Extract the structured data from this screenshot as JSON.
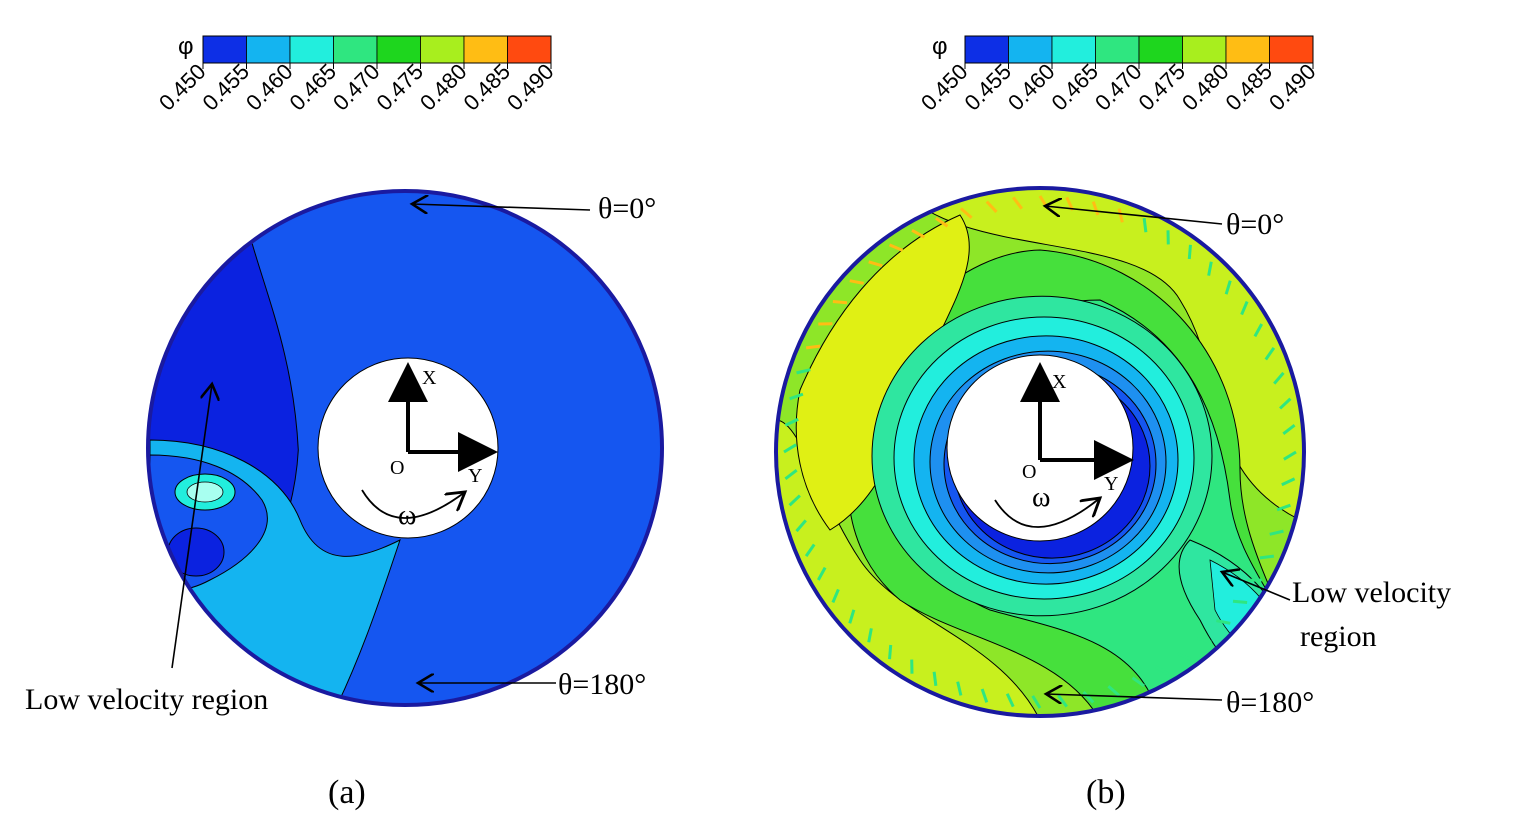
{
  "chart_data": [
    {
      "type": "heatmap",
      "panel_label": "(a)",
      "colorbar": {
        "symbol": "φ",
        "ticks": [
          "0.450",
          "0.455",
          "0.460",
          "0.465",
          "0.470",
          "0.475",
          "0.480",
          "0.485",
          "0.490"
        ],
        "colors": [
          "#0d2fe6",
          "#14b4f0",
          "#22eedd",
          "#2fe680",
          "#1ed61e",
          "#a8ee1e",
          "#ffbd14",
          "#ff4a10"
        ]
      },
      "annotations": {
        "theta_top": "θ=0°",
        "theta_bottom": "θ=180°",
        "low_velocity": "Low velocity region",
        "axis_x": "X",
        "axis_y": "Y",
        "origin": "O",
        "rotation": "ω"
      }
    },
    {
      "type": "heatmap",
      "panel_label": "(b)",
      "colorbar": {
        "symbol": "φ",
        "ticks": [
          "0.450",
          "0.455",
          "0.460",
          "0.465",
          "0.470",
          "0.475",
          "0.480",
          "0.485",
          "0.490"
        ],
        "colors": [
          "#0d2fe6",
          "#14b4f0",
          "#22eedd",
          "#2fe680",
          "#1ed61e",
          "#a8ee1e",
          "#ffbd14",
          "#ff4a10"
        ]
      },
      "annotations": {
        "theta_top": "θ=0°",
        "theta_bottom": "θ=180°",
        "low_velocity_line1": "Low velocity",
        "low_velocity_line2": "region",
        "axis_x": "X",
        "axis_y": "Y",
        "origin": "O",
        "rotation": "ω"
      }
    }
  ],
  "colors": {
    "rim": "#1a1aa0",
    "contour_line": "#000000",
    "field_a": [
      "#0b22e0",
      "#1556f0",
      "#14b4f0",
      "#22eedd",
      "#2fe680",
      "#1ed61e",
      "#6ee61e",
      "#c8f01e",
      "#ffe614",
      "#ffbd14",
      "#ff6a10",
      "#ff2010"
    ],
    "field_b": [
      "#0b22e0",
      "#1556f0",
      "#14b4f0",
      "#22eedd",
      "#2fe6a0",
      "#2fe680",
      "#46e03c",
      "#8ee628",
      "#c8f01e",
      "#e0f014",
      "#ffbd14"
    ]
  }
}
